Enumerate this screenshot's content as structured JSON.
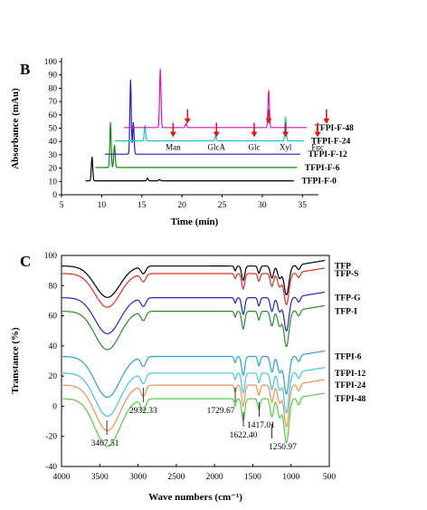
{
  "chart_data": [
    {
      "panel_label": "B",
      "type": "line",
      "xlabel": "Time (min)",
      "ylabel": "Absorbance (mAu)",
      "xlim": [
        5,
        37
      ],
      "ylim": [
        0,
        100
      ],
      "x_ticks": [
        5,
        10,
        15,
        20,
        25,
        30,
        35
      ],
      "y_ticks": [
        0,
        10,
        20,
        30,
        40,
        50,
        60,
        70,
        80,
        90,
        100
      ],
      "stacked_offset": true,
      "series": [
        {
          "name": "TFPI-F-0",
          "color": "#000000",
          "baseline": 0,
          "peaks": [
            {
              "x": 8.8,
              "h": 18
            },
            {
              "x": 15.7,
              "h": 2
            },
            {
              "x": 17.2,
              "h": 1
            }
          ]
        },
        {
          "name": "TFPI-F-6",
          "color": "#138a13",
          "baseline": 10,
          "peaks": [
            {
              "x": 11.1,
              "h": 34
            },
            {
              "x": 11.6,
              "h": 17
            }
          ]
        },
        {
          "name": "TFPI-F-12",
          "color": "#1f1fd0",
          "baseline": 20,
          "peaks": [
            {
              "x": 13.6,
              "h": 56
            },
            {
              "x": 13.95,
              "h": 24
            }
          ]
        },
        {
          "name": "TFPI-F-24",
          "color": "#10c4d6",
          "baseline": 30,
          "peaks": [
            {
              "x": 15.4,
              "h": 12
            },
            {
              "x": 24.2,
              "h": 4
            },
            {
              "x": 32.9,
              "h": 18
            },
            {
              "x": 36.9,
              "h": 92
            }
          ]
        },
        {
          "name": "TFPI-F-48",
          "color": "#d316c4",
          "baseline": 40,
          "peaks": [
            {
              "x": 17.3,
              "h": 44
            },
            {
              "x": 20.5,
              "h": 3
            },
            {
              "x": 30.8,
              "h": 28
            },
            {
              "x": 38.0,
              "h": 22
            }
          ]
        }
      ],
      "arrows": [
        {
          "label": "Man",
          "x": 18.9,
          "target": "TFPI-F-24"
        },
        {
          "label": "",
          "x": 20.7,
          "target": "TFPI-F-48"
        },
        {
          "label": "GlcA",
          "x": 24.3,
          "target": "TFPI-F-24"
        },
        {
          "label": "Glc",
          "x": 29.0,
          "target": "TFPI-F-24"
        },
        {
          "label": "",
          "x": 30.8,
          "target": "TFPI-F-48"
        },
        {
          "label": "Xyl",
          "x": 32.9,
          "target": "TFPI-F-24"
        },
        {
          "label": "Fuc",
          "x": 36.9,
          "target": "TFPI-F-24"
        },
        {
          "label": "",
          "x": 38.0,
          "target": "TFPI-F-48"
        }
      ]
    },
    {
      "panel_label": "C",
      "type": "line",
      "xlabel": "Wave numbers (cm⁻¹)",
      "ylabel": "Transtance (%)",
      "xlim": [
        4000,
        500
      ],
      "x_reversed": true,
      "ylim": [
        -40,
        100
      ],
      "x_ticks": [
        4000,
        3500,
        3000,
        2500,
        2000,
        1500,
        1000,
        500
      ],
      "y_ticks": [
        -40,
        -20,
        0,
        20,
        40,
        60,
        80,
        100
      ],
      "series": [
        {
          "name": "TFP",
          "color": "#000000",
          "offset": 93
        },
        {
          "name": "TFP-S",
          "color": "#e03020",
          "offset": 88
        },
        {
          "name": "TFP-G",
          "color": "#2424c8",
          "offset": 72
        },
        {
          "name": "TFP-I",
          "color": "#2a8a2a",
          "offset": 63
        },
        {
          "name": "TFPI-6",
          "color": "#2aa0d0",
          "offset": 33
        },
        {
          "name": "TFPI-12",
          "color": "#40c8e0",
          "offset": 22
        },
        {
          "name": "TFPI-24",
          "color": "#f09050",
          "offset": 14
        },
        {
          "name": "TFPI-48",
          "color": "#50d040",
          "offset": 5
        }
      ],
      "peak_labels": [
        {
          "text": "3407.51",
          "x": 3407.51
        },
        {
          "text": "2932.33",
          "x": 2932.33
        },
        {
          "text": "1729.67",
          "x": 1729.67
        },
        {
          "text": "1622.40",
          "x": 1622.4
        },
        {
          "text": "1417.01",
          "x": 1417.01
        },
        {
          "text": "1250.97",
          "x": 1250.97
        }
      ]
    }
  ]
}
